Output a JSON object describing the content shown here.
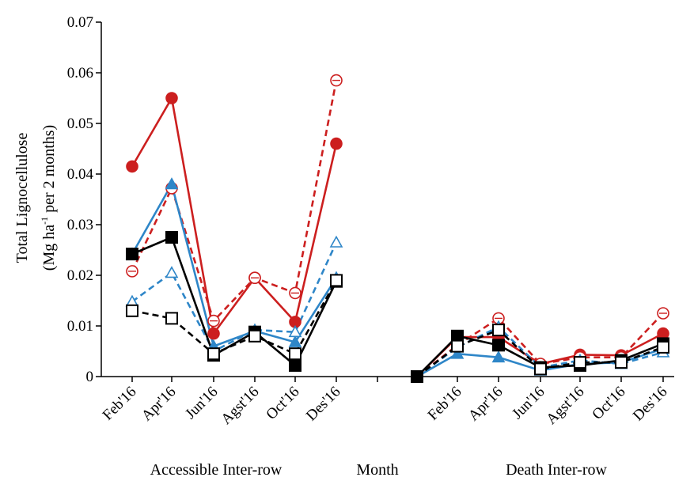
{
  "chart_data": {
    "type": "line",
    "ylabel_line1": "Total Lignocellulose",
    "ylabel_line2_prefix": "(Mg ha",
    "ylabel_line2_sup": "-1",
    "ylabel_line2_suffix": " per 2 months)",
    "ylim": [
      0,
      0.07
    ],
    "yticks": [
      "0",
      "0.01",
      "0.02",
      "0.03",
      "0.04",
      "0.05",
      "0.06",
      "0.07"
    ],
    "xlabel": "Month",
    "groups": [
      {
        "label": "Accessible Inter-row",
        "categories": [
          "Feb'16",
          "Apr'16",
          "Jun'16",
          "Agst'16",
          "Oct'16",
          "Des'16"
        ]
      },
      {
        "label": "Death Inter-row",
        "categories": [
          "",
          "Feb'16",
          "Apr'16",
          "Jun'16",
          "Agst'16",
          "Oct'16",
          "Des'16"
        ]
      }
    ],
    "grid": false,
    "series": [
      {
        "color": "#cc1f1f",
        "dash": false,
        "marker": "circle-filled",
        "values": [
          [
            0.0415,
            0.055,
            0.0085,
            0.0195,
            0.0108,
            0.046
          ],
          [
            0,
            0.0078,
            0.0078,
            0.0025,
            0.0043,
            0.0042,
            0.0085
          ]
        ]
      },
      {
        "color": "#cc1f1f",
        "dash": true,
        "marker": "circle-open",
        "values": [
          [
            0.0208,
            0.0372,
            0.011,
            0.0195,
            0.0165,
            0.0585
          ],
          [
            0,
            0.0062,
            0.0115,
            0.0025,
            0.0038,
            0.0038,
            0.0125
          ]
        ]
      },
      {
        "color": "#2e86c8",
        "dash": false,
        "marker": "triangle-filled",
        "values": [
          [
            0.0242,
            0.038,
            0.006,
            0.009,
            0.0068,
            0.0195
          ],
          [
            0,
            0.0045,
            0.0038,
            0.0012,
            0.0025,
            0.0028,
            0.0055
          ]
        ]
      },
      {
        "color": "#2e86c8",
        "dash": true,
        "marker": "triangle-open",
        "values": [
          [
            0.0148,
            0.0205,
            0.005,
            0.0092,
            0.0088,
            0.0265
          ],
          [
            0,
            0.0058,
            0.0098,
            0.0018,
            0.0032,
            0.0025,
            0.0048
          ]
        ]
      },
      {
        "color": "#000000",
        "dash": false,
        "marker": "square-filled",
        "values": [
          [
            0.0242,
            0.0275,
            0.0042,
            0.0088,
            0.0022,
            0.0188
          ],
          [
            0,
            0.008,
            0.0062,
            0.0018,
            0.0022,
            0.0032,
            0.0065
          ]
        ]
      },
      {
        "color": "#000000",
        "dash": true,
        "marker": "square-open",
        "values": [
          [
            0.013,
            0.0115,
            0.0045,
            0.008,
            0.0045,
            0.019
          ],
          [
            0,
            0.006,
            0.0092,
            0.0015,
            0.0028,
            0.0028,
            0.0058
          ]
        ]
      }
    ]
  }
}
